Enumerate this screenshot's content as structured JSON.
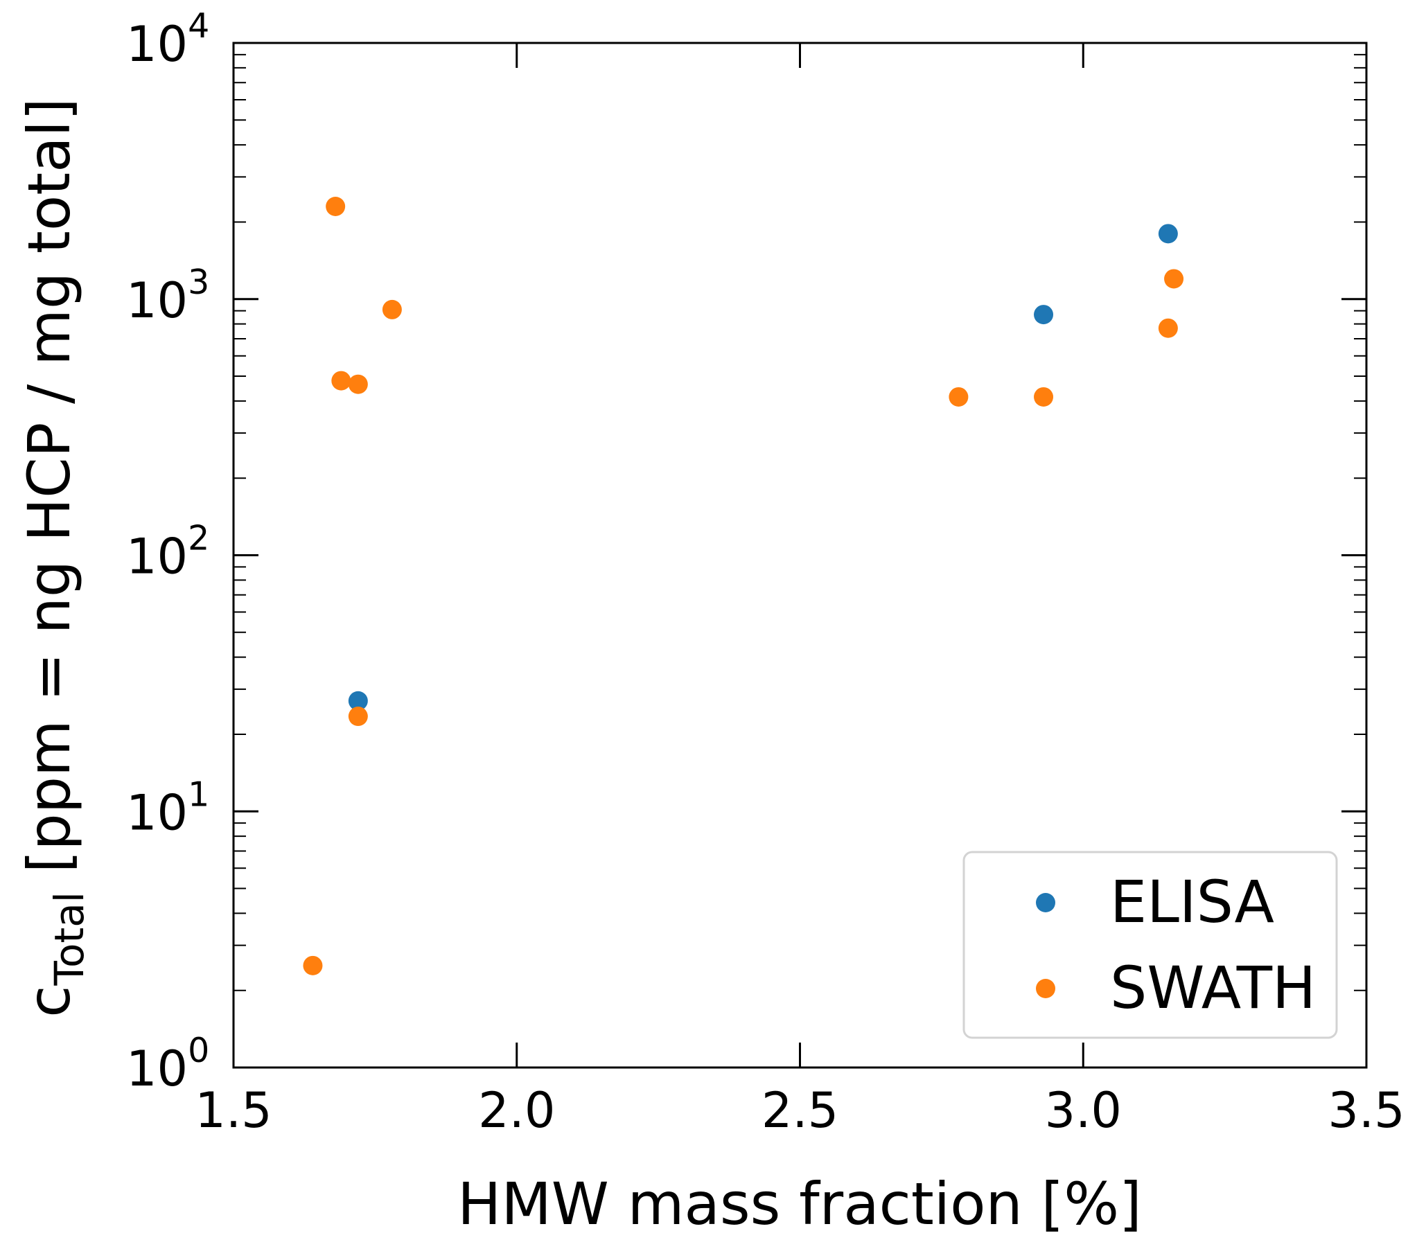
{
  "chart_data": {
    "type": "scatter",
    "xlabel": "HMW mass fraction [%]",
    "ylabel": {
      "main": "c",
      "subscript": "Total",
      "rest": " [ppm = ng HCP / mg total]"
    },
    "xlim": [
      1.5,
      3.5
    ],
    "xticks": [
      "1.5",
      "2.0",
      "2.5",
      "3.0",
      "3.5"
    ],
    "xtick_values": [
      1.5,
      2.0,
      2.5,
      3.0,
      3.5
    ],
    "yscale": "log",
    "ylim": [
      1,
      10000
    ],
    "yticks": [
      {
        "base": "10",
        "exp": "0",
        "value": 1
      },
      {
        "base": "10",
        "exp": "1",
        "value": 10
      },
      {
        "base": "10",
        "exp": "2",
        "value": 100
      },
      {
        "base": "10",
        "exp": "3",
        "value": 1000
      },
      {
        "base": "10",
        "exp": "4",
        "value": 10000
      }
    ],
    "grid": false,
    "legend_position": "bottom-right",
    "series": [
      {
        "name": "ELISA",
        "color": "#1f77b4",
        "points": [
          {
            "x": 1.72,
            "y": 27
          },
          {
            "x": 2.93,
            "y": 870
          },
          {
            "x": 3.15,
            "y": 1800
          }
        ]
      },
      {
        "name": "SWATH",
        "color": "#ff7f0e",
        "points": [
          {
            "x": 1.68,
            "y": 2300
          },
          {
            "x": 1.78,
            "y": 910
          },
          {
            "x": 1.69,
            "y": 480
          },
          {
            "x": 1.72,
            "y": 465
          },
          {
            "x": 1.72,
            "y": 23.5
          },
          {
            "x": 1.64,
            "y": 2.5
          },
          {
            "x": 2.78,
            "y": 415
          },
          {
            "x": 2.93,
            "y": 415
          },
          {
            "x": 3.15,
            "y": 770
          },
          {
            "x": 3.16,
            "y": 1200
          }
        ]
      }
    ]
  }
}
